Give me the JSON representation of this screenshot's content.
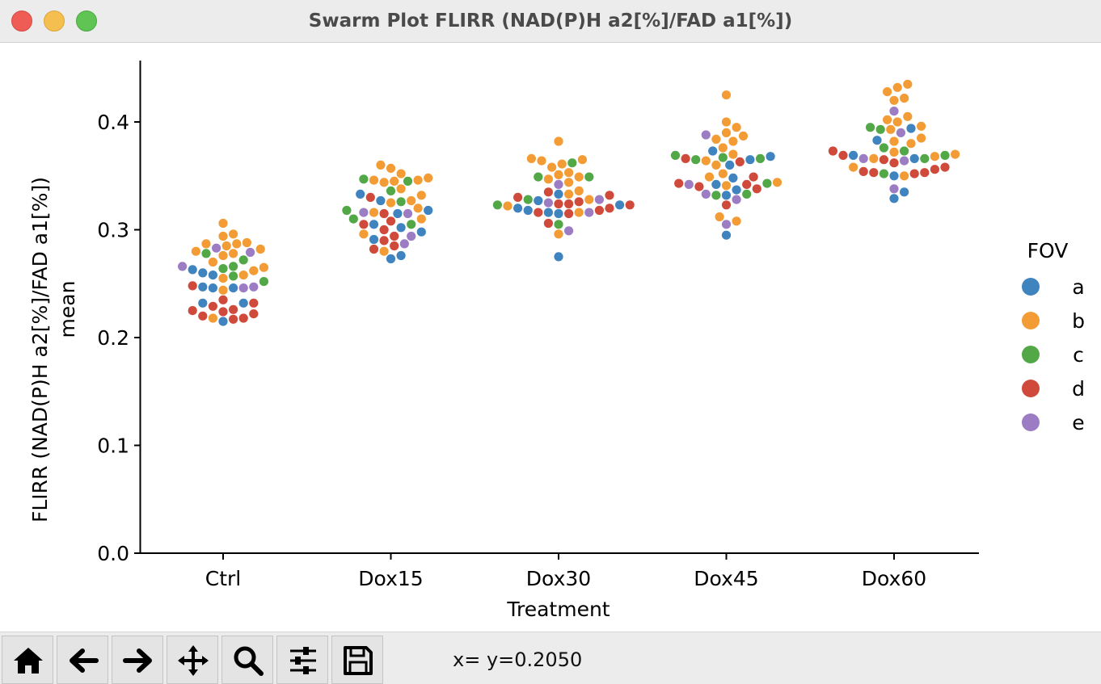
{
  "window": {
    "title": "Swarm Plot FLIRR (NAD(P)H a2[%]/FAD a1[%])"
  },
  "status": {
    "text": "x= y=0.2050"
  },
  "toolbar": {
    "buttons": [
      {
        "name": "home-button",
        "icon": "home-icon"
      },
      {
        "name": "back-button",
        "icon": "arrow-left-icon"
      },
      {
        "name": "forward-button",
        "icon": "arrow-right-icon"
      },
      {
        "name": "pan-button",
        "icon": "move-icon"
      },
      {
        "name": "zoom-button",
        "icon": "magnifier-icon"
      },
      {
        "name": "configure-button",
        "icon": "sliders-icon"
      },
      {
        "name": "save-button",
        "icon": "floppy-icon"
      }
    ]
  },
  "chart_data": {
    "type": "scatter",
    "subtype": "swarm",
    "xlabel": "Treatment",
    "ylabel_lines": [
      "FLIRR (NAD(P)H a2[%]/FAD a1[%])",
      "mean"
    ],
    "categories": [
      "Ctrl",
      "Dox15",
      "Dox30",
      "Dox45",
      "Dox60"
    ],
    "ylim": [
      0.0,
      0.455
    ],
    "yticks": [
      0.0,
      0.1,
      0.2,
      0.3,
      0.4
    ],
    "ytick_labels": [
      "0.0",
      "0.1",
      "0.2",
      "0.3",
      "0.4"
    ],
    "grid": false,
    "legend": {
      "title": "FOV",
      "placement": "right"
    },
    "series": [
      {
        "name": "a",
        "color": "#3f84bf",
        "values": [
          [
            0.263,
            0.26,
            0.258,
            0.247,
            0.246,
            0.246,
            0.232,
            0.232,
            0.215
          ],
          [
            0.333,
            0.327,
            0.318,
            0.315,
            0.305,
            0.302,
            0.298,
            0.291,
            0.276,
            0.273
          ],
          [
            0.333,
            0.327,
            0.323,
            0.32,
            0.318,
            0.316,
            0.315,
            0.275
          ],
          [
            0.373,
            0.368,
            0.365,
            0.36,
            0.348,
            0.342,
            0.337,
            0.332,
            0.295
          ],
          [
            0.394,
            0.383,
            0.369,
            0.366,
            0.35,
            0.335,
            0.329
          ]
        ]
      },
      {
        "name": "b",
        "color": "#f39c35",
        "values": [
          [
            0.306,
            0.296,
            0.294,
            0.288,
            0.287,
            0.287,
            0.285,
            0.282,
            0.28,
            0.278,
            0.276,
            0.27,
            0.265,
            0.262,
            0.258,
            0.255,
            0.244,
            0.218
          ],
          [
            0.36,
            0.357,
            0.352,
            0.348,
            0.346,
            0.346,
            0.345,
            0.344,
            0.338,
            0.332,
            0.327,
            0.325,
            0.32,
            0.316,
            0.31,
            0.296,
            0.28
          ],
          [
            0.382,
            0.366,
            0.365,
            0.364,
            0.361,
            0.358,
            0.353,
            0.351,
            0.349,
            0.347,
            0.344,
            0.336,
            0.333,
            0.328,
            0.322,
            0.316,
            0.296
          ],
          [
            0.425,
            0.4,
            0.395,
            0.39,
            0.387,
            0.384,
            0.382,
            0.376,
            0.37,
            0.364,
            0.36,
            0.352,
            0.349,
            0.344,
            0.341,
            0.312,
            0.308
          ],
          [
            0.435,
            0.432,
            0.428,
            0.422,
            0.42,
            0.405,
            0.402,
            0.4,
            0.396,
            0.393,
            0.385,
            0.382,
            0.38,
            0.372,
            0.37,
            0.368,
            0.366,
            0.358,
            0.35
          ]
        ]
      },
      {
        "name": "c",
        "color": "#52a847",
        "values": [
          [
            0.278,
            0.272,
            0.266,
            0.264,
            0.257,
            0.252
          ],
          [
            0.347,
            0.345,
            0.336,
            0.326,
            0.318,
            0.31,
            0.305
          ],
          [
            0.362,
            0.349,
            0.349,
            0.328,
            0.323,
            0.305
          ],
          [
            0.369,
            0.367,
            0.366,
            0.365,
            0.343,
            0.333,
            0.332
          ],
          [
            0.395,
            0.393,
            0.376,
            0.373,
            0.369,
            0.366,
            0.352
          ]
        ]
      },
      {
        "name": "d",
        "color": "#d04a3b",
        "values": [
          [
            0.248,
            0.235,
            0.232,
            0.229,
            0.226,
            0.225,
            0.224,
            0.222,
            0.22,
            0.218,
            0.217
          ],
          [
            0.33,
            0.315,
            0.308,
            0.305,
            0.3,
            0.294,
            0.29,
            0.285,
            0.282
          ],
          [
            0.335,
            0.332,
            0.33,
            0.326,
            0.324,
            0.324,
            0.323,
            0.32,
            0.318,
            0.316,
            0.315,
            0.306
          ],
          [
            0.366,
            0.363,
            0.349,
            0.343,
            0.342,
            0.34,
            0.338,
            0.323
          ],
          [
            0.373,
            0.369,
            0.365,
            0.362,
            0.358,
            0.356,
            0.354,
            0.353,
            0.353,
            0.352
          ]
        ]
      },
      {
        "name": "e",
        "color": "#9c7dc4",
        "values": [
          [
            0.283,
            0.279,
            0.266,
            0.247,
            0.246
          ],
          [
            0.316,
            0.315,
            0.294,
            0.287
          ],
          [
            0.342,
            0.328,
            0.325,
            0.316,
            0.299
          ],
          [
            0.388,
            0.342,
            0.333,
            0.328,
            0.305
          ],
          [
            0.41,
            0.39,
            0.366,
            0.364,
            0.338
          ]
        ]
      }
    ]
  }
}
